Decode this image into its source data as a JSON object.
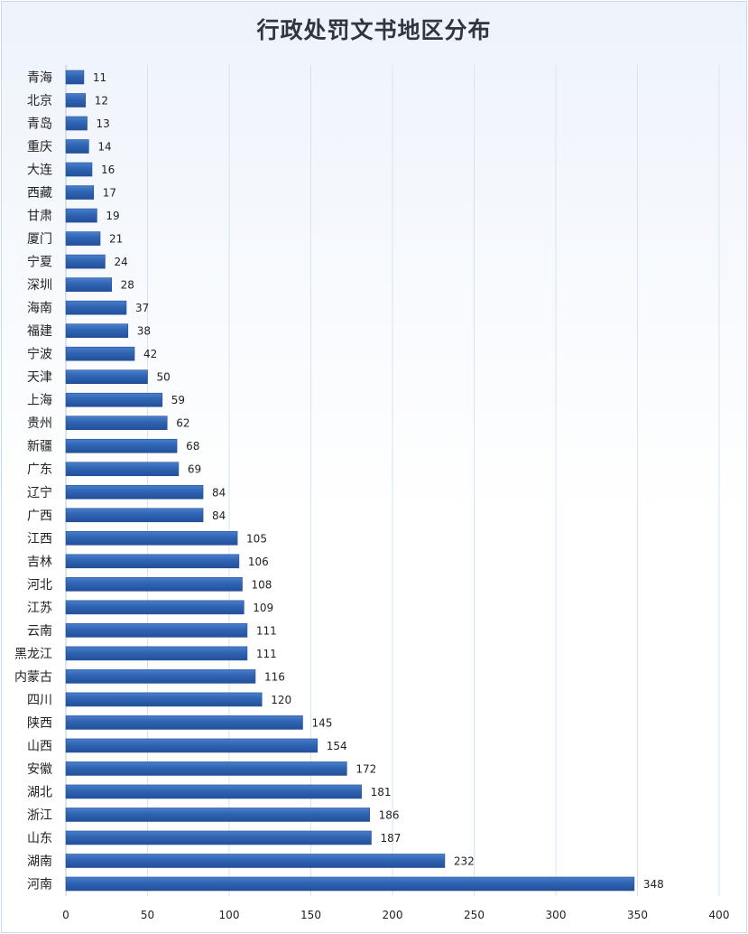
{
  "chart_data": {
    "type": "bar",
    "orientation": "horizontal",
    "title": "行政处罚文书地区分布",
    "xlabel": "",
    "ylabel": "",
    "xlim": [
      0,
      400
    ],
    "xticks": [
      0,
      50,
      100,
      150,
      200,
      250,
      300,
      350,
      400
    ],
    "grid": "vertical",
    "legend": "none",
    "data_labels": true,
    "bar_color": "#2e63b2",
    "categories": [
      "青海",
      "北京",
      "青岛",
      "重庆",
      "大连",
      "西藏",
      "甘肃",
      "厦门",
      "宁夏",
      "深圳",
      "海南",
      "福建",
      "宁波",
      "天津",
      "上海",
      "贵州",
      "新疆",
      "广东",
      "辽宁",
      "广西",
      "江西",
      "吉林",
      "河北",
      "江苏",
      "云南",
      "黑龙江",
      "内蒙古",
      "四川",
      "陕西",
      "山西",
      "安徽",
      "湖北",
      "浙江",
      "山东",
      "湖南",
      "河南"
    ],
    "values": [
      11,
      12,
      13,
      14,
      16,
      17,
      19,
      21,
      24,
      28,
      37,
      38,
      42,
      50,
      59,
      62,
      68,
      69,
      84,
      84,
      105,
      106,
      108,
      109,
      111,
      111,
      116,
      120,
      145,
      154,
      172,
      181,
      186,
      187,
      232,
      348
    ]
  }
}
